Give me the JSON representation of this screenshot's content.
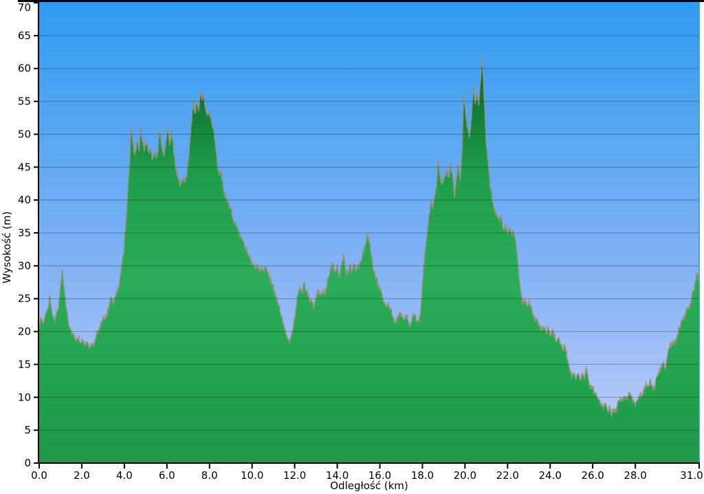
{
  "axes": {
    "x": {
      "label": "Odległość  (km)",
      "tick_values": [
        0,
        2,
        4,
        6,
        8,
        10,
        12,
        14,
        16,
        18,
        20,
        22,
        24,
        26,
        28,
        31
      ],
      "tick_labels": [
        "0.0",
        "2.0",
        "4.0",
        "6.0",
        "8.0",
        "10.0",
        "12.0",
        "14.0",
        "16.0",
        "18.0",
        "20.0",
        "22.0",
        "24.0",
        "26.0",
        "28.0",
        "31.0"
      ]
    },
    "y": {
      "label": "Wysokość (m)",
      "tick_values": [
        0,
        5,
        10,
        15,
        20,
        25,
        30,
        35,
        40,
        45,
        50,
        55,
        60,
        65,
        70
      ],
      "tick_labels": [
        "0",
        "5",
        "10",
        "15",
        "20",
        "25",
        "30",
        "35",
        "40",
        "45",
        "50",
        "55",
        "60",
        "65",
        "70"
      ]
    }
  },
  "colors": {
    "sky_top": "#2F9CF2",
    "sky_mid": "#7FB1F4",
    "sky_bottom": "#C3CFF8",
    "terrain_stops": [
      "#0A5E27",
      "#117434",
      "#1F9C49",
      "#2CAC58",
      "#22A14D",
      "#1F9849"
    ],
    "terrain_stop_offsets": [
      0,
      0.1,
      0.28,
      0.55,
      0.82,
      1
    ],
    "outline": "#95917F",
    "grid": "rgba(0,0,0,0.30)",
    "spine": "#000000",
    "right_spine": "#2C9C94",
    "frame_top": "#000000"
  },
  "chart_data": {
    "type": "area",
    "title": "",
    "xlabel": "Odległość  (km)",
    "ylabel": "Wysokość (m)",
    "xlim": [
      0,
      31
    ],
    "ylim": [
      0,
      70
    ],
    "grid": "horizontal",
    "legend": "none",
    "noise_amplitude_m": 0.55,
    "noise_step_km": 0.02,
    "points": [
      [
        0.0,
        20.8
      ],
      [
        0.1,
        22.0
      ],
      [
        0.2,
        21.3
      ],
      [
        0.3,
        22.6
      ],
      [
        0.4,
        23.3
      ],
      [
        0.5,
        25.4
      ],
      [
        0.6,
        22.9
      ],
      [
        0.7,
        21.7
      ],
      [
        0.8,
        22.5
      ],
      [
        0.9,
        23.4
      ],
      [
        1.0,
        26.6
      ],
      [
        1.08,
        29.4
      ],
      [
        1.15,
        27.0
      ],
      [
        1.25,
        24.0
      ],
      [
        1.35,
        21.8
      ],
      [
        1.45,
        20.3
      ],
      [
        1.55,
        19.6
      ],
      [
        1.65,
        19.0
      ],
      [
        1.75,
        18.8
      ],
      [
        1.85,
        19.1
      ],
      [
        1.95,
        18.4
      ],
      [
        2.05,
        18.7
      ],
      [
        2.15,
        17.9
      ],
      [
        2.25,
        18.5
      ],
      [
        2.35,
        17.5
      ],
      [
        2.45,
        18.3
      ],
      [
        2.55,
        18.0
      ],
      [
        2.65,
        18.9
      ],
      [
        2.75,
        20.1
      ],
      [
        2.85,
        20.7
      ],
      [
        2.95,
        21.5
      ],
      [
        3.05,
        22.0
      ],
      [
        3.15,
        22.5
      ],
      [
        3.25,
        23.2
      ],
      [
        3.35,
        25.1
      ],
      [
        3.45,
        24.3
      ],
      [
        3.55,
        25.0
      ],
      [
        3.65,
        26.2
      ],
      [
        3.75,
        26.6
      ],
      [
        3.85,
        29.4
      ],
      [
        3.95,
        31.6
      ],
      [
        4.05,
        35.4
      ],
      [
        4.15,
        40.6
      ],
      [
        4.25,
        45.8
      ],
      [
        4.32,
        51.0
      ],
      [
        4.4,
        48.5
      ],
      [
        4.5,
        46.8
      ],
      [
        4.6,
        49.1
      ],
      [
        4.7,
        47.5
      ],
      [
        4.77,
        51.3
      ],
      [
        4.85,
        48.8
      ],
      [
        4.95,
        47.7
      ],
      [
        5.05,
        48.9
      ],
      [
        5.12,
        47.3
      ],
      [
        5.22,
        47.8
      ],
      [
        5.32,
        46.3
      ],
      [
        5.42,
        47.2
      ],
      [
        5.52,
        46.4
      ],
      [
        5.6,
        48.2
      ],
      [
        5.65,
        50.7
      ],
      [
        5.75,
        48.1
      ],
      [
        5.85,
        46.6
      ],
      [
        5.95,
        49.0
      ],
      [
        6.03,
        51.1
      ],
      [
        6.13,
        48.3
      ],
      [
        6.23,
        50.4
      ],
      [
        6.33,
        46.9
      ],
      [
        6.43,
        44.5
      ],
      [
        6.55,
        43.0
      ],
      [
        6.65,
        42.4
      ],
      [
        6.75,
        43.2
      ],
      [
        6.85,
        42.7
      ],
      [
        6.95,
        44.4
      ],
      [
        7.05,
        47.7
      ],
      [
        7.15,
        51.6
      ],
      [
        7.23,
        55.1
      ],
      [
        7.31,
        53.2
      ],
      [
        7.4,
        54.6
      ],
      [
        7.48,
        53.5
      ],
      [
        7.58,
        56.3
      ],
      [
        7.65,
        55.1
      ],
      [
        7.72,
        55.9
      ],
      [
        7.8,
        54.3
      ],
      [
        7.9,
        52.9
      ],
      [
        8.0,
        53.3
      ],
      [
        8.1,
        51.8
      ],
      [
        8.2,
        50.7
      ],
      [
        8.3,
        47.5
      ],
      [
        8.38,
        45.0
      ],
      [
        8.46,
        43.8
      ],
      [
        8.56,
        44.1
      ],
      [
        8.66,
        41.4
      ],
      [
        8.76,
        40.5
      ],
      [
        8.86,
        39.7
      ],
      [
        8.96,
        38.8
      ],
      [
        9.1,
        37.3
      ],
      [
        9.25,
        36.1
      ],
      [
        9.4,
        34.9
      ],
      [
        9.55,
        33.8
      ],
      [
        9.7,
        32.7
      ],
      [
        9.85,
        31.5
      ],
      [
        9.95,
        31.0
      ],
      [
        10.05,
        30.0
      ],
      [
        10.15,
        29.6
      ],
      [
        10.25,
        30.2
      ],
      [
        10.35,
        29.3
      ],
      [
        10.45,
        29.9
      ],
      [
        10.55,
        29.1
      ],
      [
        10.65,
        29.8
      ],
      [
        10.75,
        29.0
      ],
      [
        10.85,
        28.0
      ],
      [
        10.95,
        27.1
      ],
      [
        11.1,
        25.7
      ],
      [
        11.25,
        24.0
      ],
      [
        11.4,
        22.1
      ],
      [
        11.55,
        20.2
      ],
      [
        11.65,
        19.0
      ],
      [
        11.75,
        18.2
      ],
      [
        11.85,
        19.5
      ],
      [
        11.95,
        21.0
      ],
      [
        12.05,
        23.3
      ],
      [
        12.15,
        25.7
      ],
      [
        12.25,
        26.8
      ],
      [
        12.35,
        26.0
      ],
      [
        12.45,
        27.5
      ],
      [
        12.55,
        26.2
      ],
      [
        12.65,
        25.3
      ],
      [
        12.8,
        24.5
      ],
      [
        12.9,
        23.6
      ],
      [
        13.0,
        24.9
      ],
      [
        13.1,
        26.3
      ],
      [
        13.2,
        25.4
      ],
      [
        13.3,
        26.1
      ],
      [
        13.4,
        25.6
      ],
      [
        13.5,
        26.9
      ],
      [
        13.6,
        28.3
      ],
      [
        13.7,
        29.7
      ],
      [
        13.8,
        30.4
      ],
      [
        13.9,
        29.1
      ],
      [
        14.0,
        29.8
      ],
      [
        14.1,
        28.5
      ],
      [
        14.2,
        29.9
      ],
      [
        14.3,
        31.7
      ],
      [
        14.4,
        29.2
      ],
      [
        14.5,
        28.7
      ],
      [
        14.6,
        30.1
      ],
      [
        14.7,
        29.1
      ],
      [
        14.8,
        30.3
      ],
      [
        14.9,
        29.4
      ],
      [
        15.0,
        29.9
      ],
      [
        15.1,
        30.8
      ],
      [
        15.2,
        31.6
      ],
      [
        15.3,
        33.1
      ],
      [
        15.42,
        34.8
      ],
      [
        15.52,
        33.5
      ],
      [
        15.62,
        31.1
      ],
      [
        15.72,
        29.3
      ],
      [
        15.82,
        28.2
      ],
      [
        15.92,
        27.1
      ],
      [
        16.02,
        26.2
      ],
      [
        16.12,
        25.1
      ],
      [
        16.22,
        24.4
      ],
      [
        16.32,
        23.7
      ],
      [
        16.42,
        24.0
      ],
      [
        16.52,
        23.4
      ],
      [
        16.62,
        22.0
      ],
      [
        16.72,
        21.4
      ],
      [
        16.82,
        22.1
      ],
      [
        16.92,
        22.7
      ],
      [
        17.02,
        22.3
      ],
      [
        17.12,
        21.9
      ],
      [
        17.22,
        22.4
      ],
      [
        17.32,
        21.6
      ],
      [
        17.42,
        20.9
      ],
      [
        17.52,
        22.2
      ],
      [
        17.62,
        22.5
      ],
      [
        17.72,
        21.8
      ],
      [
        17.82,
        21.6
      ],
      [
        17.92,
        23.2
      ],
      [
        18.0,
        27.4
      ],
      [
        18.1,
        31.3
      ],
      [
        18.2,
        34.5
      ],
      [
        18.3,
        37.4
      ],
      [
        18.4,
        39.6
      ],
      [
        18.5,
        38.7
      ],
      [
        18.58,
        40.7
      ],
      [
        18.68,
        43.1
      ],
      [
        18.75,
        46.2
      ],
      [
        18.85,
        43.2
      ],
      [
        18.95,
        42.5
      ],
      [
        19.05,
        43.7
      ],
      [
        19.15,
        44.3
      ],
      [
        19.25,
        43.4
      ],
      [
        19.32,
        45.6
      ],
      [
        19.42,
        43.8
      ],
      [
        19.5,
        40.4
      ],
      [
        19.6,
        43.7
      ],
      [
        19.68,
        45.3
      ],
      [
        19.78,
        42.8
      ],
      [
        19.86,
        47.5
      ],
      [
        19.95,
        56.6
      ],
      [
        20.05,
        52.3
      ],
      [
        20.14,
        50.7
      ],
      [
        20.22,
        49.5
      ],
      [
        20.32,
        53.5
      ],
      [
        20.4,
        57.3
      ],
      [
        20.48,
        54.6
      ],
      [
        20.56,
        56.1
      ],
      [
        20.64,
        54.4
      ],
      [
        20.72,
        57.9
      ],
      [
        20.8,
        61.9
      ],
      [
        20.9,
        55.5
      ],
      [
        21.0,
        48.3
      ],
      [
        21.1,
        45.2
      ],
      [
        21.2,
        41.6
      ],
      [
        21.3,
        39.7
      ],
      [
        21.4,
        38.3
      ],
      [
        21.5,
        37.5
      ],
      [
        21.6,
        36.9
      ],
      [
        21.7,
        37.4
      ],
      [
        21.8,
        35.5
      ],
      [
        21.9,
        35.9
      ],
      [
        22.0,
        34.9
      ],
      [
        22.1,
        35.4
      ],
      [
        22.2,
        34.6
      ],
      [
        22.3,
        34.9
      ],
      [
        22.4,
        33.3
      ],
      [
        22.5,
        29.8
      ],
      [
        22.6,
        26.4
      ],
      [
        22.7,
        24.2
      ],
      [
        22.8,
        24.9
      ],
      [
        22.9,
        23.8
      ],
      [
        23.0,
        24.5
      ],
      [
        23.1,
        23.6
      ],
      [
        23.2,
        22.6
      ],
      [
        23.3,
        21.5
      ],
      [
        23.4,
        21.9
      ],
      [
        23.5,
        20.8
      ],
      [
        23.6,
        20.3
      ],
      [
        23.7,
        20.6
      ],
      [
        23.8,
        19.9
      ],
      [
        23.9,
        20.4
      ],
      [
        24.0,
        19.7
      ],
      [
        24.1,
        20.0
      ],
      [
        24.2,
        19.3
      ],
      [
        24.3,
        18.5
      ],
      [
        24.4,
        18.9
      ],
      [
        24.5,
        17.9
      ],
      [
        24.6,
        17.3
      ],
      [
        24.7,
        17.8
      ],
      [
        24.8,
        15.9
      ],
      [
        24.9,
        14.6
      ],
      [
        25.0,
        13.2
      ],
      [
        25.1,
        13.7
      ],
      [
        25.2,
        12.6
      ],
      [
        25.3,
        13.4
      ],
      [
        25.4,
        12.8
      ],
      [
        25.5,
        13.3
      ],
      [
        25.6,
        12.6
      ],
      [
        25.7,
        14.6
      ],
      [
        25.8,
        12.3
      ],
      [
        25.9,
        11.8
      ],
      [
        26.0,
        11.3
      ],
      [
        26.1,
        10.8
      ],
      [
        26.2,
        10.1
      ],
      [
        26.3,
        9.6
      ],
      [
        26.4,
        8.9
      ],
      [
        26.5,
        8.4
      ],
      [
        26.6,
        8.8
      ],
      [
        26.7,
        7.8
      ],
      [
        26.8,
        8.6
      ],
      [
        26.9,
        7.2
      ],
      [
        27.0,
        8.2
      ],
      [
        27.1,
        7.7
      ],
      [
        27.2,
        9.4
      ],
      [
        27.3,
        9.9
      ],
      [
        27.4,
        9.5
      ],
      [
        27.5,
        10.2
      ],
      [
        27.6,
        9.7
      ],
      [
        27.7,
        10.8
      ],
      [
        27.8,
        10.1
      ],
      [
        27.9,
        9.3
      ],
      [
        28.0,
        8.6
      ],
      [
        28.1,
        9.5
      ],
      [
        28.2,
        10.4
      ],
      [
        28.3,
        10.0
      ],
      [
        28.4,
        10.9
      ],
      [
        28.5,
        12.3
      ],
      [
        28.6,
        11.6
      ],
      [
        28.7,
        12.6
      ],
      [
        28.8,
        11.7
      ],
      [
        28.9,
        11.2
      ],
      [
        29.0,
        13.1
      ],
      [
        29.1,
        13.8
      ],
      [
        29.2,
        14.4
      ],
      [
        29.3,
        15.3
      ],
      [
        29.4,
        14.2
      ],
      [
        29.5,
        16.2
      ],
      [
        29.6,
        17.6
      ],
      [
        29.7,
        18.3
      ],
      [
        29.8,
        18.0
      ],
      [
        29.9,
        18.6
      ],
      [
        30.0,
        19.8
      ],
      [
        30.1,
        20.7
      ],
      [
        30.2,
        21.6
      ],
      [
        30.3,
        22.3
      ],
      [
        30.4,
        23.1
      ],
      [
        30.5,
        23.4
      ],
      [
        30.6,
        24.2
      ],
      [
        30.7,
        25.9
      ],
      [
        30.8,
        27.3
      ],
      [
        30.9,
        28.8
      ],
      [
        31.0,
        27.6
      ]
    ]
  }
}
